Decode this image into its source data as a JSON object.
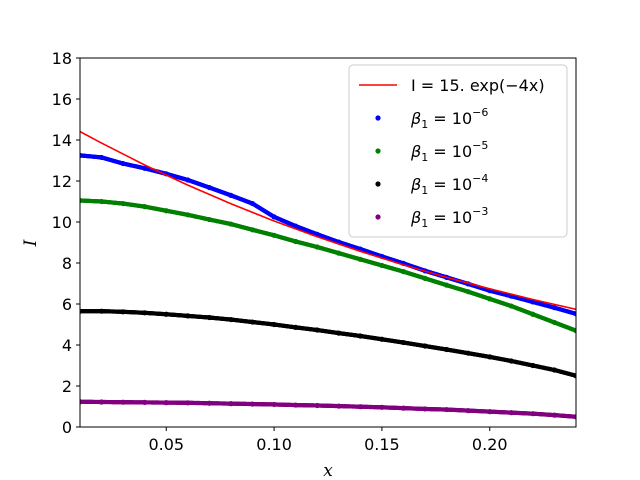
{
  "chart_data": {
    "type": "scatter",
    "xlabel": "x",
    "ylabel": "I",
    "xlim": [
      0.01,
      0.24
    ],
    "ylim": [
      0,
      18
    ],
    "x_ticks": [
      0.05,
      0.1,
      0.15,
      0.2
    ],
    "x_tick_labels": [
      "0.05",
      "0.10",
      "0.15",
      "0.20"
    ],
    "y_ticks": [
      0,
      2,
      4,
      6,
      8,
      10,
      12,
      14,
      16,
      18
    ],
    "y_tick_labels": [
      "0",
      "2",
      "4",
      "6",
      "8",
      "10",
      "12",
      "14",
      "16",
      "18"
    ],
    "grid": false,
    "legend_position": "top-right",
    "line": {
      "name": "I = 15. exp(−4x)",
      "type": "line",
      "color": "#ff0000",
      "x": [
        0.01,
        0.02,
        0.04,
        0.06,
        0.08,
        0.1,
        0.12,
        0.14,
        0.16,
        0.18,
        0.2,
        0.22,
        0.24
      ],
      "y": [
        14.41,
        13.85,
        12.78,
        11.8,
        10.89,
        10.05,
        9.28,
        8.57,
        7.91,
        7.3,
        6.74,
        6.22,
        5.74
      ]
    },
    "series": [
      {
        "name": "β1 = 10^-6",
        "label_main": "β",
        "label_sub": "1",
        "label_rel": " = 10",
        "label_exp": "−6",
        "color": "#0000ff",
        "x": [
          0.01,
          0.02,
          0.03,
          0.04,
          0.05,
          0.06,
          0.07,
          0.08,
          0.09,
          0.1,
          0.11,
          0.12,
          0.13,
          0.14,
          0.15,
          0.16,
          0.17,
          0.18,
          0.19,
          0.2,
          0.21,
          0.22,
          0.23,
          0.24
        ],
        "y": [
          13.25,
          13.15,
          12.85,
          12.62,
          12.35,
          12.05,
          11.68,
          11.3,
          10.9,
          10.25,
          9.8,
          9.4,
          9.02,
          8.68,
          8.32,
          7.98,
          7.62,
          7.3,
          6.98,
          6.65,
          6.38,
          6.1,
          5.82,
          5.52
        ]
      },
      {
        "name": "β1 = 10^-5",
        "label_main": "β",
        "label_sub": "1",
        "label_rel": " = 10",
        "label_exp": "−5",
        "color": "#008000",
        "x": [
          0.01,
          0.02,
          0.03,
          0.04,
          0.05,
          0.06,
          0.07,
          0.08,
          0.09,
          0.1,
          0.11,
          0.12,
          0.13,
          0.14,
          0.15,
          0.16,
          0.17,
          0.18,
          0.19,
          0.2,
          0.21,
          0.22,
          0.23,
          0.24
        ],
        "y": [
          11.05,
          11.0,
          10.9,
          10.75,
          10.55,
          10.35,
          10.12,
          9.9,
          9.62,
          9.35,
          9.05,
          8.78,
          8.48,
          8.18,
          7.88,
          7.58,
          7.25,
          6.92,
          6.6,
          6.25,
          5.9,
          5.5,
          5.1,
          4.7
        ]
      },
      {
        "name": "β1 = 10^-4",
        "label_main": "β",
        "label_sub": "1",
        "label_rel": " = 10",
        "label_exp": "−4",
        "color": "#000000",
        "x": [
          0.01,
          0.02,
          0.03,
          0.04,
          0.05,
          0.06,
          0.07,
          0.08,
          0.09,
          0.1,
          0.11,
          0.12,
          0.13,
          0.14,
          0.15,
          0.16,
          0.17,
          0.18,
          0.19,
          0.2,
          0.21,
          0.22,
          0.23,
          0.24
        ],
        "y": [
          5.65,
          5.65,
          5.62,
          5.57,
          5.5,
          5.42,
          5.34,
          5.24,
          5.12,
          5.0,
          4.86,
          4.73,
          4.58,
          4.44,
          4.28,
          4.12,
          3.95,
          3.78,
          3.6,
          3.42,
          3.22,
          3.0,
          2.78,
          2.5
        ]
      },
      {
        "name": "β1 = 10^-3",
        "label_main": "β",
        "label_sub": "1",
        "label_rel": " = 10",
        "label_exp": "−3",
        "color": "#800080",
        "x": [
          0.01,
          0.02,
          0.03,
          0.04,
          0.05,
          0.06,
          0.07,
          0.08,
          0.09,
          0.1,
          0.11,
          0.12,
          0.13,
          0.14,
          0.15,
          0.16,
          0.17,
          0.18,
          0.19,
          0.2,
          0.21,
          0.22,
          0.23,
          0.24
        ],
        "y": [
          1.23,
          1.22,
          1.21,
          1.2,
          1.19,
          1.18,
          1.16,
          1.14,
          1.12,
          1.1,
          1.07,
          1.05,
          1.02,
          0.99,
          0.96,
          0.92,
          0.88,
          0.85,
          0.8,
          0.75,
          0.7,
          0.65,
          0.58,
          0.5
        ]
      }
    ]
  }
}
